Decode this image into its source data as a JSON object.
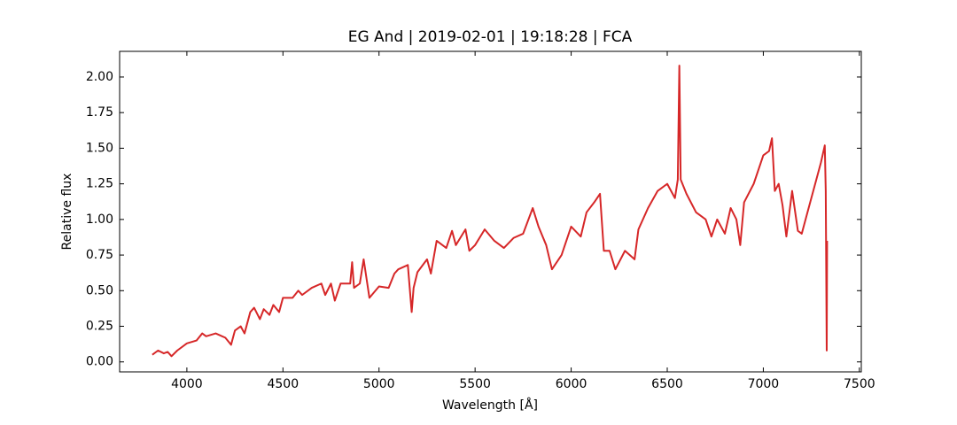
{
  "chart_data": {
    "type": "line",
    "title": "EG And | 2019-02-01 | 19:18:28 | FCA",
    "x_label": "Wavelength [Å]",
    "y_label": "Relative flux",
    "color": "#d62728",
    "xlim": [
      3650,
      7510
    ],
    "ylim": [
      -0.07,
      2.18
    ],
    "xticks": [
      4000,
      4500,
      5000,
      5500,
      6000,
      6500,
      7000,
      7500
    ],
    "yticks": [
      {
        "value": 0,
        "label": "0.00"
      },
      0.25,
      {
        "value": 0.5,
        "label": "0.50"
      },
      0.75,
      {
        "value": 1,
        "label": "1.00"
      },
      1.25,
      {
        "value": 1.5,
        "label": "1.50"
      },
      1.75,
      {
        "value": 2,
        "label": "2.00"
      }
    ],
    "x": [
      3820,
      3850,
      3880,
      3900,
      3920,
      3950,
      4000,
      4050,
      4080,
      4100,
      4150,
      4200,
      4230,
      4250,
      4280,
      4300,
      4330,
      4350,
      4380,
      4400,
      4430,
      4450,
      4480,
      4500,
      4550,
      4580,
      4600,
      4650,
      4700,
      4720,
      4750,
      4770,
      4800,
      4850,
      4860,
      4870,
      4900,
      4920,
      4950,
      5000,
      5050,
      5080,
      5100,
      5150,
      5170,
      5180,
      5200,
      5250,
      5270,
      5300,
      5350,
      5380,
      5400,
      5450,
      5470,
      5500,
      5550,
      5600,
      5650,
      5700,
      5750,
      5800,
      5830,
      5870,
      5900,
      5950,
      6000,
      6050,
      6080,
      6120,
      6150,
      6170,
      6200,
      6230,
      6280,
      6330,
      6350,
      6400,
      6450,
      6500,
      6540,
      6555,
      6563,
      6570,
      6600,
      6650,
      6700,
      6730,
      6760,
      6800,
      6830,
      6860,
      6880,
      6900,
      6950,
      7000,
      7030,
      7045,
      7060,
      7080,
      7100,
      7120,
      7150,
      7180,
      7200,
      7230,
      7270,
      7300,
      7320,
      7325,
      7330,
      7332
    ],
    "values": [
      0.05,
      0.08,
      0.06,
      0.07,
      0.04,
      0.08,
      0.13,
      0.15,
      0.2,
      0.18,
      0.2,
      0.17,
      0.12,
      0.22,
      0.25,
      0.2,
      0.35,
      0.38,
      0.3,
      0.37,
      0.33,
      0.4,
      0.35,
      0.45,
      0.45,
      0.5,
      0.47,
      0.52,
      0.55,
      0.47,
      0.55,
      0.43,
      0.55,
      0.55,
      0.7,
      0.52,
      0.55,
      0.72,
      0.45,
      0.53,
      0.52,
      0.62,
      0.65,
      0.68,
      0.35,
      0.52,
      0.63,
      0.72,
      0.62,
      0.85,
      0.8,
      0.92,
      0.82,
      0.93,
      0.78,
      0.82,
      0.93,
      0.85,
      0.8,
      0.87,
      0.9,
      1.08,
      0.95,
      0.82,
      0.65,
      0.75,
      0.95,
      0.88,
      1.05,
      1.12,
      1.18,
      0.78,
      0.78,
      0.65,
      0.78,
      0.72,
      0.93,
      1.08,
      1.2,
      1.25,
      1.15,
      1.28,
      2.08,
      1.28,
      1.18,
      1.05,
      1.0,
      0.88,
      1.0,
      0.9,
      1.08,
      1.0,
      0.82,
      1.12,
      1.25,
      1.45,
      1.48,
      1.57,
      1.2,
      1.25,
      1.1,
      0.88,
      1.2,
      0.92,
      0.9,
      1.05,
      1.25,
      1.4,
      1.52,
      1.2,
      0.08,
      0.85
    ]
  }
}
